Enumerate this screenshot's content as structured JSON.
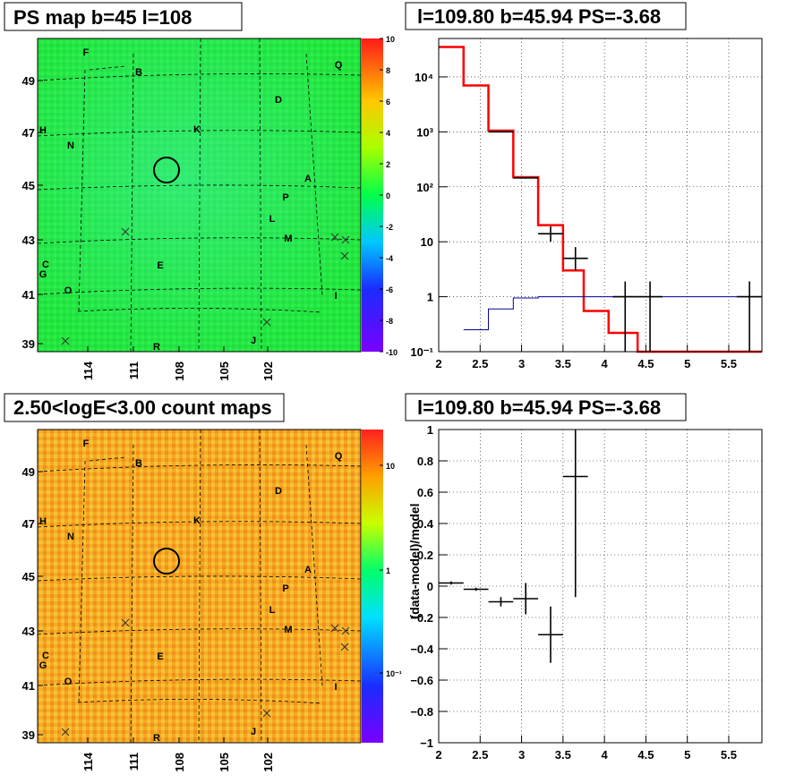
{
  "panels": {
    "ps_map": {
      "title": "PS map b=45 l=108",
      "x_ticks": [
        "114",
        "111",
        "108",
        "105",
        "102"
      ],
      "y_ticks": [
        "49",
        "47",
        "45",
        "43",
        "41",
        "39"
      ],
      "colorbar_ticks": [
        "10",
        "8",
        "6",
        "4",
        "2",
        "0",
        "-2",
        "-4",
        "-6",
        "-8",
        "-10"
      ],
      "letters": [
        "F",
        "B",
        "Q",
        "D",
        "H",
        "K",
        "N",
        "A",
        "P",
        "L",
        "M",
        "C",
        "G",
        "E",
        "O",
        "I",
        "R",
        "J"
      ]
    },
    "count_map": {
      "title": "2.50<logE<3.00 count maps",
      "x_ticks": [
        "114",
        "111",
        "108",
        "105",
        "102"
      ],
      "y_ticks": [
        "49",
        "47",
        "45",
        "43",
        "41",
        "39"
      ],
      "colorbar_ticks": [
        "10",
        "1",
        "10⁻¹"
      ],
      "letters": [
        "F",
        "B",
        "Q",
        "D",
        "H",
        "K",
        "N",
        "A",
        "P",
        "L",
        "M",
        "C",
        "G",
        "E",
        "O",
        "I",
        "R",
        "J"
      ]
    },
    "spectrum": {
      "title": "l=109.80 b=45.94 PS=-3.68"
    },
    "residual": {
      "title": "l=109.80 b=45.94 PS=-3.68"
    }
  },
  "chart_data": [
    {
      "type": "heatmap",
      "title": "PS map b=45 l=108",
      "x_ticks": [
        114,
        111,
        108,
        105,
        102
      ],
      "y_ticks": [
        49,
        47,
        45,
        43,
        41,
        39
      ],
      "color_range": [
        -10,
        10
      ],
      "dominant_value": 0.5,
      "source_marker": {
        "l": 109.8,
        "b": 45.5
      }
    },
    {
      "type": "line",
      "title": "l=109.80 b=45.94 PS=-3.68",
      "xlim": [
        2,
        5.9
      ],
      "ylim": [
        0.1,
        50000
      ],
      "yscale": "log",
      "grid": true,
      "x_ticks": [
        2,
        2.5,
        3,
        3.5,
        4,
        4.5,
        5,
        5.5
      ],
      "y_ticks": [
        "10⁻¹",
        "1",
        "10",
        "10²",
        "10³",
        "10⁴"
      ],
      "series": [
        {
          "color": "#ff0000",
          "style": "step",
          "edges": [
            2.0,
            2.3,
            2.6,
            2.9,
            3.2,
            3.5,
            3.75,
            4.05,
            4.4,
            5.9
          ],
          "values": [
            35000,
            7000,
            1050,
            150,
            20,
            3,
            0.55,
            0.22,
            0.1
          ]
        },
        {
          "color": "#000099",
          "style": "step",
          "edges": [
            2.3,
            2.6,
            2.9,
            3.2,
            3.5,
            5.9
          ],
          "values": [
            0.25,
            0.6,
            0.95,
            1.0,
            1.0
          ]
        },
        {
          "color": "#000000",
          "style": "errorbar",
          "points": [
            {
              "x": 2.75,
              "y": 1000,
              "xerr": 0.15,
              "lo": 1000,
              "hi": 1000
            },
            {
              "x": 3.05,
              "y": 145,
              "xerr": 0.15,
              "lo": 140,
              "hi": 150
            },
            {
              "x": 3.35,
              "y": 14,
              "xerr": 0.15,
              "lo": 10,
              "hi": 19
            },
            {
              "x": 3.65,
              "y": 5,
              "xerr": 0.15,
              "lo": 3,
              "hi": 8
            },
            {
              "x": 4.25,
              "y": 1,
              "xerr": 0.15,
              "lo": 0.1,
              "hi": 1.9
            },
            {
              "x": 4.55,
              "y": 1,
              "xerr": 0.15,
              "lo": 0.1,
              "hi": 1.9
            },
            {
              "x": 5.75,
              "y": 1,
              "xerr": 0.15,
              "lo": 0.1,
              "hi": 1.9
            }
          ]
        }
      ]
    },
    {
      "type": "heatmap",
      "title": "2.50<logE<3.00 count maps",
      "x_ticks": [
        114,
        111,
        108,
        105,
        102
      ],
      "y_ticks": [
        49,
        47,
        45,
        43,
        41,
        39
      ],
      "color_scale": "log",
      "colorbar_ticks": [
        "10",
        "1",
        "10⁻¹"
      ]
    },
    {
      "type": "scatter",
      "title": "l=109.80 b=45.94 PS=-3.68",
      "ylabel": "(data-model)/model",
      "xlim": [
        2,
        5.9
      ],
      "ylim": [
        -1,
        1
      ],
      "grid": true,
      "x_ticks": [
        2,
        2.5,
        3,
        3.5,
        4,
        4.5,
        5,
        5.5
      ],
      "y_ticks": [
        1,
        0.8,
        0.6,
        0.4,
        0.2,
        0,
        -0.2,
        -0.4,
        -0.6,
        -0.8,
        -1
      ],
      "points": [
        {
          "x": 2.15,
          "y": 0.02,
          "xerr": 0.15,
          "yerr": 0.01
        },
        {
          "x": 2.45,
          "y": -0.02,
          "xerr": 0.15,
          "yerr": 0.01
        },
        {
          "x": 2.75,
          "y": -0.1,
          "xerr": 0.15,
          "yerr": 0.03
        },
        {
          "x": 3.05,
          "y": -0.08,
          "xerr": 0.15,
          "yerr": 0.1
        },
        {
          "x": 3.35,
          "y": -0.31,
          "xerr": 0.15,
          "yerr": 0.18
        },
        {
          "x": 3.65,
          "y": 0.7,
          "xerr": 0.15,
          "lo": -0.07,
          "hi": 1.0
        }
      ]
    }
  ]
}
